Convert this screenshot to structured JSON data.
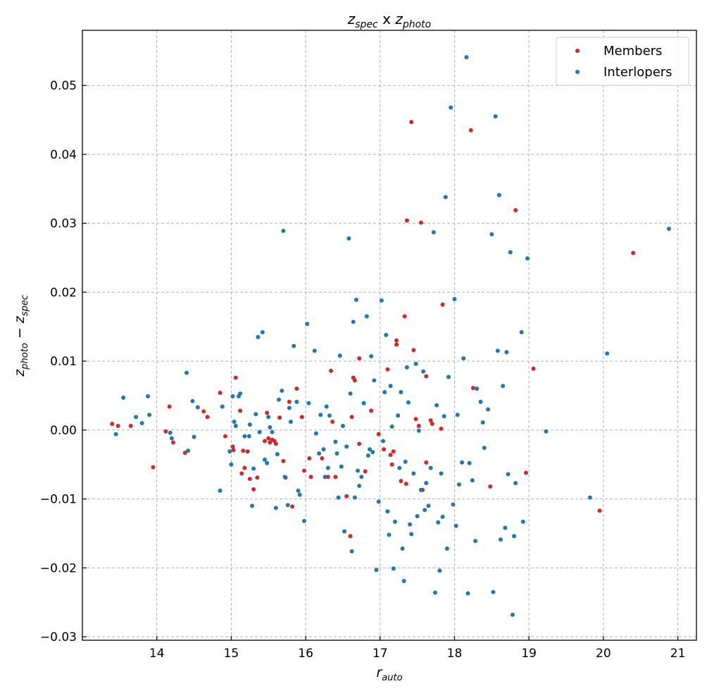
{
  "chart_data": {
    "type": "scatter",
    "title": {
      "base1": "z",
      "sub1": "spec",
      "mid": " x ",
      "base2": "z",
      "sub2": "photo"
    },
    "xlabel": {
      "base": "r",
      "sub": "auto"
    },
    "ylabel": {
      "base1": "z",
      "sub1": "photo",
      "op": " − ",
      "base2": "z",
      "sub2": "spec"
    },
    "xlim": [
      13.0,
      21.25
    ],
    "ylim": [
      -0.0305,
      0.058
    ],
    "xticks": [
      14,
      15,
      16,
      17,
      18,
      19,
      20,
      21
    ],
    "xtick_labels": [
      "14",
      "15",
      "16",
      "17",
      "18",
      "19",
      "20",
      "21"
    ],
    "yticks": [
      -0.03,
      -0.02,
      -0.01,
      0.0,
      0.01,
      0.02,
      0.03,
      0.04,
      0.05
    ],
    "ytick_labels": [
      "−0.03",
      "−0.02",
      "−0.01",
      "0.00",
      "0.01",
      "0.02",
      "0.03",
      "0.04",
      "0.05"
    ],
    "grid": true,
    "legend_position": "top-right",
    "series": [
      {
        "name": "Members",
        "color": "#d62728",
        "points": [
          [
            13.4,
            0.0009
          ],
          [
            13.48,
            0.0006
          ],
          [
            13.65,
            0.0006
          ],
          [
            13.95,
            -0.0054
          ],
          [
            14.12,
            -0.0002
          ],
          [
            14.17,
            0.0034
          ],
          [
            14.22,
            -0.0018
          ],
          [
            14.38,
            -0.0033
          ],
          [
            14.63,
            0.0027
          ],
          [
            14.68,
            0.0019
          ],
          [
            14.85,
            0.0054
          ],
          [
            14.92,
            -0.0009
          ],
          [
            15.02,
            -0.0024
          ],
          [
            15.03,
            -0.0029
          ],
          [
            15.06,
            0.0076
          ],
          [
            15.12,
            0.0028
          ],
          [
            15.14,
            -0.0063
          ],
          [
            15.16,
            -0.003
          ],
          [
            15.18,
            -0.0055
          ],
          [
            15.22,
            -0.0031
          ],
          [
            15.25,
            -0.0071
          ],
          [
            15.3,
            -0.0086
          ],
          [
            15.35,
            -0.0069
          ],
          [
            15.45,
            -0.0016
          ],
          [
            15.48,
            0.0025
          ],
          [
            15.5,
            -0.0012
          ],
          [
            15.52,
            -0.0018
          ],
          [
            15.55,
            -0.0014
          ],
          [
            15.58,
            -0.0016
          ],
          [
            15.6,
            -0.002
          ],
          [
            15.65,
            0.0018
          ],
          [
            15.7,
            -0.0045
          ],
          [
            15.73,
            -0.0069
          ],
          [
            15.78,
            0.0041
          ],
          [
            15.82,
            -0.0111
          ],
          [
            15.88,
            0.006
          ],
          [
            15.95,
            0.0019
          ],
          [
            15.98,
            -0.0059
          ],
          [
            16.05,
            -0.0041
          ],
          [
            16.07,
            -0.0068
          ],
          [
            16.22,
            -0.0041
          ],
          [
            16.3,
            -0.0068
          ],
          [
            16.34,
            0.0086
          ],
          [
            16.36,
            0.0012
          ],
          [
            16.4,
            -0.0068
          ],
          [
            16.55,
            -0.0096
          ],
          [
            16.6,
            -0.0154
          ],
          [
            16.62,
            0.0019
          ],
          [
            16.64,
            0.0076
          ],
          [
            16.66,
            0.0072
          ],
          [
            16.72,
            0.0104
          ],
          [
            16.72,
            -0.002
          ],
          [
            16.8,
            -0.006
          ],
          [
            16.88,
            0.0028
          ],
          [
            16.98,
            -0.0006
          ],
          [
            17.05,
            -0.0028
          ],
          [
            17.1,
            0.0088
          ],
          [
            17.14,
            -0.0036
          ],
          [
            17.16,
            -0.005
          ],
          [
            17.18,
            -0.0031
          ],
          [
            17.22,
            0.013
          ],
          [
            17.22,
            0.0124
          ],
          [
            17.28,
            -0.0074
          ],
          [
            17.33,
            0.0165
          ],
          [
            17.35,
            -0.0078
          ],
          [
            17.36,
            0.0304
          ],
          [
            17.42,
            0.0447
          ],
          [
            17.45,
            0.0116
          ],
          [
            17.48,
            0.0016
          ],
          [
            17.52,
            0.0006
          ],
          [
            17.55,
            0.0301
          ],
          [
            17.57,
            -0.0087
          ],
          [
            17.62,
            0.0078
          ],
          [
            17.62,
            -0.0047
          ],
          [
            17.68,
            0.0014
          ],
          [
            17.7,
            0.0009
          ],
          [
            17.82,
            0.0002
          ],
          [
            17.84,
            0.0182
          ],
          [
            18.22,
            0.0435
          ],
          [
            18.25,
            0.0061
          ],
          [
            18.48,
            -0.0082
          ],
          [
            18.82,
            0.0319
          ],
          [
            18.96,
            -0.0062
          ],
          [
            19.06,
            0.0089
          ],
          [
            19.95,
            -0.0117
          ],
          [
            20.4,
            0.0257
          ]
        ]
      },
      {
        "name": "Interlopers",
        "color": "#1f77b4",
        "points": [
          [
            13.45,
            -0.0006
          ],
          [
            13.55,
            0.0047
          ],
          [
            13.72,
            0.0019
          ],
          [
            13.8,
            0.001
          ],
          [
            13.88,
            0.0049
          ],
          [
            13.9,
            0.0022
          ],
          [
            14.18,
            -0.0004
          ],
          [
            14.2,
            -0.0012
          ],
          [
            14.4,
            0.0083
          ],
          [
            14.42,
            -0.003
          ],
          [
            14.48,
            0.0042
          ],
          [
            14.5,
            -0.001
          ],
          [
            14.55,
            0.0033
          ],
          [
            14.85,
            -0.0088
          ],
          [
            14.88,
            0.0034
          ],
          [
            14.98,
            -0.0031
          ],
          [
            15.0,
            -0.005
          ],
          [
            15.02,
            0.0049
          ],
          [
            15.04,
            0.0012
          ],
          [
            15.06,
            0.0006
          ],
          [
            15.1,
            0.0049
          ],
          [
            15.12,
            0.0053
          ],
          [
            15.18,
            -0.0009
          ],
          [
            15.24,
            -0.0009
          ],
          [
            15.25,
            0.0008
          ],
          [
            15.28,
            -0.011
          ],
          [
            15.3,
            -0.0056
          ],
          [
            15.33,
            0.0023
          ],
          [
            15.36,
            0.0135
          ],
          [
            15.38,
            -0.0003
          ],
          [
            15.42,
            0.0142
          ],
          [
            15.45,
            -0.0043
          ],
          [
            15.48,
            -0.0048
          ],
          [
            15.5,
            0.0019
          ],
          [
            15.52,
            0.0004
          ],
          [
            15.55,
            -0.0003
          ],
          [
            15.6,
            -0.0113
          ],
          [
            15.62,
            -0.0035
          ],
          [
            15.64,
            0.0044
          ],
          [
            15.68,
            0.0057
          ],
          [
            15.7,
            0.0289
          ],
          [
            15.72,
            -0.0068
          ],
          [
            15.76,
            -0.0109
          ],
          [
            15.78,
            0.0032
          ],
          [
            15.8,
            0.0012
          ],
          [
            15.84,
            0.0122
          ],
          [
            15.88,
            0.0041
          ],
          [
            15.9,
            -0.0088
          ],
          [
            15.92,
            -0.0094
          ],
          [
            15.98,
            -0.0132
          ],
          [
            16.02,
            0.0154
          ],
          [
            16.04,
            0.0039
          ],
          [
            16.12,
            0.0115
          ],
          [
            16.14,
            -0.0005
          ],
          [
            16.18,
            -0.0034
          ],
          [
            16.2,
            0.0022
          ],
          [
            16.24,
            -0.0028
          ],
          [
            16.26,
            -0.0068
          ],
          [
            16.28,
            0.0034
          ],
          [
            16.3,
            -0.0055
          ],
          [
            16.32,
            0.0021
          ],
          [
            16.4,
            -0.0017
          ],
          [
            16.42,
            -0.0034
          ],
          [
            16.44,
            -0.0098
          ],
          [
            16.46,
            0.0108
          ],
          [
            16.48,
            -0.0053
          ],
          [
            16.5,
            0.0006
          ],
          [
            16.52,
            -0.0147
          ],
          [
            16.55,
            -0.0024
          ],
          [
            16.58,
            0.0278
          ],
          [
            16.6,
            0.0053
          ],
          [
            16.62,
            -0.0176
          ],
          [
            16.64,
            0.0157
          ],
          [
            16.66,
            -0.0098
          ],
          [
            16.68,
            0.0189
          ],
          [
            16.7,
            -0.0059
          ],
          [
            16.72,
            -0.0081
          ],
          [
            16.75,
            -0.0068
          ],
          [
            16.78,
            0.0039
          ],
          [
            16.82,
            0.0165
          ],
          [
            16.84,
            -0.0037
          ],
          [
            16.86,
            -0.0028
          ],
          [
            16.88,
            0.0107
          ],
          [
            16.9,
            -0.0032
          ],
          [
            16.92,
            0.0072
          ],
          [
            16.95,
            -0.0203
          ],
          [
            16.98,
            -0.0104
          ],
          [
            17.02,
            0.0188
          ],
          [
            17.04,
            -0.0016
          ],
          [
            17.06,
            0.0055
          ],
          [
            17.08,
            0.0138
          ],
          [
            17.1,
            -0.0118
          ],
          [
            17.12,
            -0.0152
          ],
          [
            17.14,
            0.0064
          ],
          [
            17.16,
            0.0005
          ],
          [
            17.18,
            -0.0201
          ],
          [
            17.2,
            -0.0133
          ],
          [
            17.24,
            0.0021
          ],
          [
            17.26,
            -0.0055
          ],
          [
            17.28,
            0.0055
          ],
          [
            17.3,
            -0.0172
          ],
          [
            17.32,
            -0.0219
          ],
          [
            17.34,
            -0.0046
          ],
          [
            17.36,
            0.0091
          ],
          [
            17.38,
            0.004
          ],
          [
            17.4,
            -0.0137
          ],
          [
            17.42,
            -0.0151
          ],
          [
            17.45,
            -0.0063
          ],
          [
            17.48,
            0.0096
          ],
          [
            17.5,
            -0.0125
          ],
          [
            17.52,
            -0.0001
          ],
          [
            17.55,
            -0.0087
          ],
          [
            17.58,
            0.0085
          ],
          [
            17.6,
            -0.0116
          ],
          [
            17.62,
            -0.0077
          ],
          [
            17.65,
            -0.011
          ],
          [
            17.68,
            -0.0055
          ],
          [
            17.72,
            0.0287
          ],
          [
            17.74,
            -0.0236
          ],
          [
            17.76,
            0.0036
          ],
          [
            17.78,
            -0.0134
          ],
          [
            17.8,
            -0.0204
          ],
          [
            17.82,
            -0.0063
          ],
          [
            17.84,
            -0.0126
          ],
          [
            17.86,
            0.002
          ],
          [
            17.88,
            0.0338
          ],
          [
            17.9,
            -0.0172
          ],
          [
            17.92,
            0.0077
          ],
          [
            17.95,
            0.0468
          ],
          [
            17.98,
            -0.0108
          ],
          [
            18.0,
            0.019
          ],
          [
            18.02,
            -0.0139
          ],
          [
            18.04,
            0.0022
          ],
          [
            18.06,
            -0.0079
          ],
          [
            18.1,
            -0.0047
          ],
          [
            18.12,
            0.0104
          ],
          [
            18.16,
            0.0541
          ],
          [
            18.18,
            -0.0237
          ],
          [
            18.2,
            -0.0048
          ],
          [
            18.24,
            -0.0073
          ],
          [
            18.28,
            -0.0161
          ],
          [
            18.3,
            0.006
          ],
          [
            18.35,
            0.0041
          ],
          [
            18.38,
            0.0011
          ],
          [
            18.4,
            -0.0026
          ],
          [
            18.45,
            0.003
          ],
          [
            18.5,
            0.0284
          ],
          [
            18.52,
            -0.0235
          ],
          [
            18.55,
            0.0455
          ],
          [
            18.58,
            0.0115
          ],
          [
            18.6,
            0.0341
          ],
          [
            18.62,
            -0.0159
          ],
          [
            18.65,
            0.0064
          ],
          [
            18.68,
            -0.0142
          ],
          [
            18.7,
            0.0113
          ],
          [
            18.72,
            -0.0064
          ],
          [
            18.75,
            0.0258
          ],
          [
            18.78,
            -0.0268
          ],
          [
            18.8,
            -0.0154
          ],
          [
            18.82,
            -0.0077
          ],
          [
            18.9,
            0.0142
          ],
          [
            18.92,
            -0.0133
          ],
          [
            18.98,
            0.0249
          ],
          [
            19.23,
            -0.0002
          ],
          [
            19.82,
            -0.0098
          ],
          [
            20.05,
            0.0111
          ],
          [
            20.88,
            0.0292
          ]
        ]
      }
    ]
  }
}
